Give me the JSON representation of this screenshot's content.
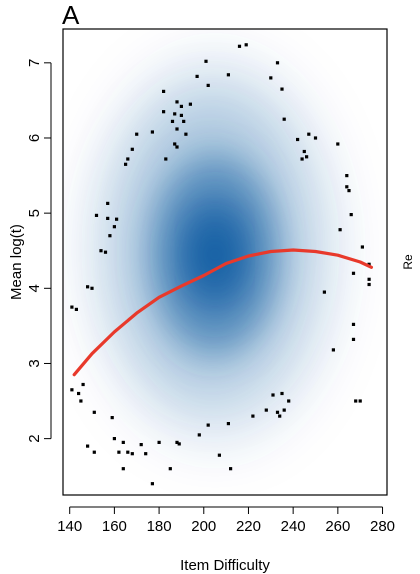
{
  "panel_label": "A",
  "edge_text": "Re",
  "chart_data": {
    "type": "scatter",
    "title": "",
    "xlabel": "Item Difficulty",
    "ylabel": "Mean log(t)",
    "xlim": [
      137,
      282
    ],
    "ylim": [
      1.25,
      7.45
    ],
    "xticks": [
      140,
      160,
      180,
      200,
      220,
      240,
      260,
      280
    ],
    "yticks": [
      2,
      3,
      4,
      5,
      6,
      7
    ],
    "density_shading": true,
    "density_peak": [
      205,
      4.45
    ],
    "colors": {
      "density": "#08519c",
      "curve": "#e8392b",
      "points": "#000000"
    },
    "smooth_curve": {
      "x": [
        142,
        150,
        160,
        170,
        180,
        190,
        200,
        210,
        220,
        230,
        240,
        250,
        260,
        270,
        275
      ],
      "y": [
        2.85,
        3.13,
        3.42,
        3.67,
        3.88,
        4.03,
        4.17,
        4.33,
        4.43,
        4.49,
        4.51,
        4.49,
        4.44,
        4.35,
        4.28
      ]
    },
    "points": [
      [
        141,
        3.75
      ],
      [
        143,
        3.72
      ],
      [
        141,
        2.65
      ],
      [
        144,
        2.6
      ],
      [
        146,
        2.72
      ],
      [
        148,
        4.02
      ],
      [
        150,
        4.0
      ],
      [
        145,
        2.5
      ],
      [
        148,
        1.9
      ],
      [
        151,
        2.35
      ],
      [
        151,
        1.82
      ],
      [
        152,
        4.97
      ],
      [
        154,
        4.5
      ],
      [
        156,
        4.48
      ],
      [
        157,
        5.13
      ],
      [
        157,
        4.93
      ],
      [
        158,
        4.7
      ],
      [
        160,
        4.82
      ],
      [
        161,
        4.92
      ],
      [
        159,
        2.28
      ],
      [
        160,
        2.0
      ],
      [
        162,
        1.82
      ],
      [
        164,
        1.6
      ],
      [
        164,
        1.95
      ],
      [
        166,
        1.82
      ],
      [
        168,
        1.8
      ],
      [
        165,
        5.65
      ],
      [
        166,
        5.72
      ],
      [
        168,
        5.85
      ],
      [
        170,
        6.05
      ],
      [
        172,
        1.92
      ],
      [
        174,
        1.8
      ],
      [
        177,
        1.4
      ],
      [
        177,
        6.08
      ],
      [
        180,
        1.95
      ],
      [
        182,
        6.62
      ],
      [
        182,
        6.35
      ],
      [
        183,
        5.72
      ],
      [
        186,
        6.22
      ],
      [
        187,
        6.32
      ],
      [
        187,
        5.92
      ],
      [
        188,
        5.88
      ],
      [
        188,
        6.12
      ],
      [
        188,
        6.48
      ],
      [
        190,
        6.42
      ],
      [
        190,
        6.3
      ],
      [
        191,
        6.22
      ],
      [
        192,
        6.05
      ],
      [
        194,
        6.45
      ],
      [
        185,
        1.6
      ],
      [
        188,
        1.95
      ],
      [
        189,
        1.93
      ],
      [
        197,
        6.82
      ],
      [
        198,
        2.05
      ],
      [
        201,
        7.02
      ],
      [
        202,
        6.7
      ],
      [
        202,
        2.18
      ],
      [
        207,
        1.78
      ],
      [
        211,
        6.84
      ],
      [
        211,
        2.2
      ],
      [
        212,
        1.6
      ],
      [
        216,
        7.22
      ],
      [
        219,
        7.24
      ],
      [
        222,
        2.3
      ],
      [
        228,
        2.38
      ],
      [
        230,
        6.8
      ],
      [
        231,
        2.58
      ],
      [
        233,
        2.35
      ],
      [
        234,
        2.3
      ],
      [
        233,
        7.0
      ],
      [
        235,
        6.65
      ],
      [
        235,
        2.6
      ],
      [
        236,
        2.38
      ],
      [
        238,
        2.5
      ],
      [
        236,
        6.25
      ],
      [
        242,
        5.98
      ],
      [
        244,
        5.72
      ],
      [
        245,
        5.82
      ],
      [
        246,
        5.75
      ],
      [
        247,
        6.05
      ],
      [
        250,
        6.0
      ],
      [
        254,
        3.95
      ],
      [
        258,
        3.18
      ],
      [
        260,
        5.92
      ],
      [
        261,
        4.78
      ],
      [
        264,
        5.5
      ],
      [
        264,
        5.35
      ],
      [
        265,
        5.3
      ],
      [
        266,
        4.98
      ],
      [
        267,
        4.2
      ],
      [
        267,
        3.52
      ],
      [
        267,
        3.32
      ],
      [
        268,
        2.5
      ],
      [
        270,
        2.5
      ],
      [
        271,
        4.55
      ],
      [
        274,
        4.32
      ],
      [
        274,
        4.12
      ],
      [
        274,
        4.05
      ]
    ]
  }
}
